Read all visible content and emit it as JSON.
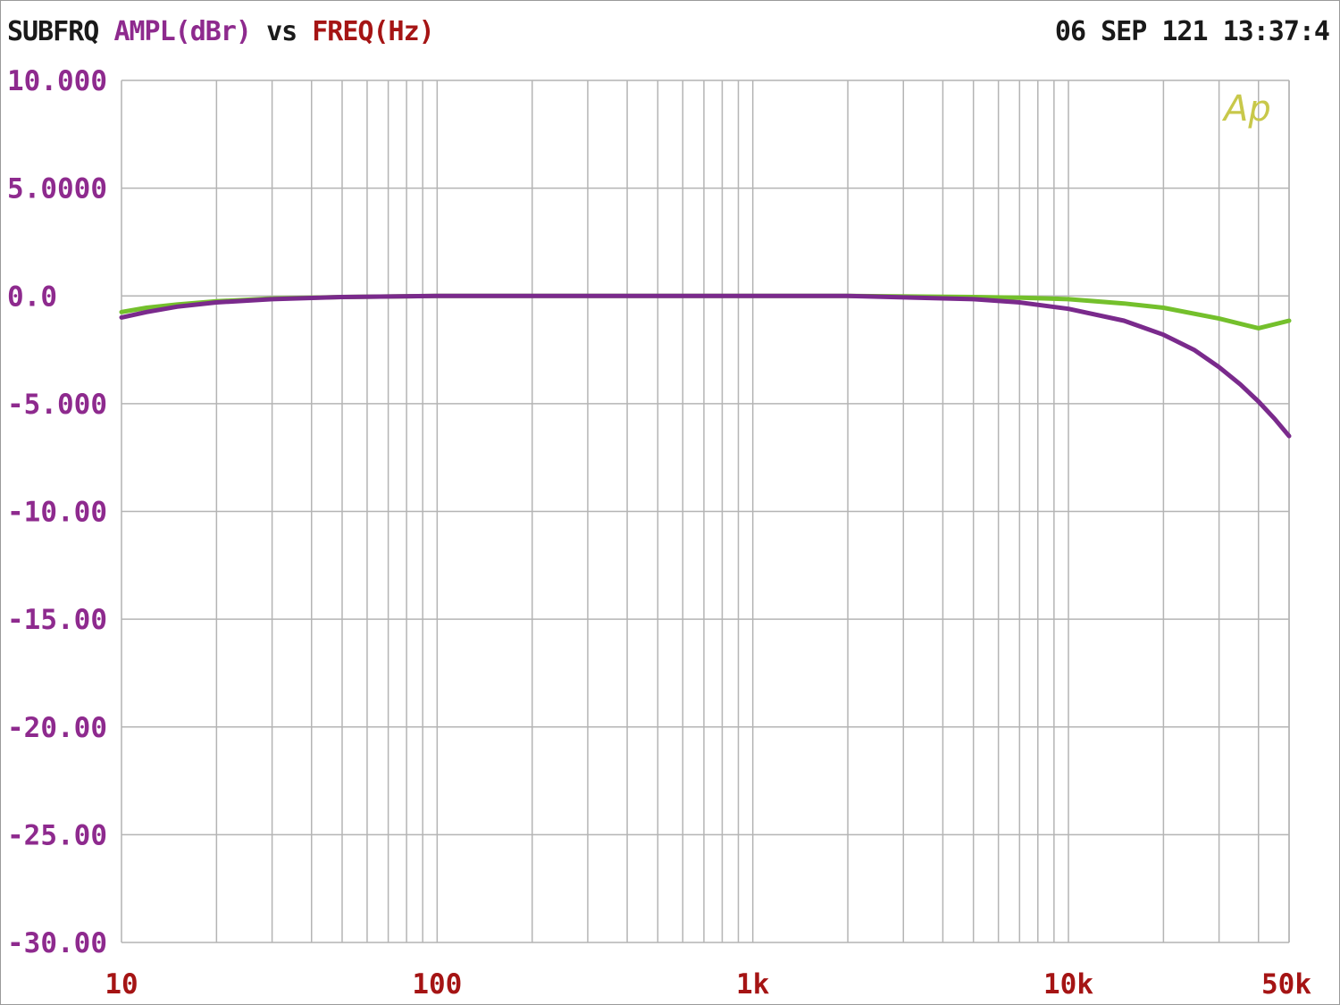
{
  "header": {
    "measurement": "SUBFRQ",
    "y_quantity": "AMPL(dBr)",
    "vs": "vs",
    "x_quantity": "FREQ(Hz)",
    "timestamp": "06 SEP 121 13:37:4"
  },
  "logo": "Ap",
  "colors": {
    "label_dark": "#1a1a1a",
    "y_axis_text": "#8e2a8e",
    "x_axis_text": "#a51414",
    "grid": "#b4b4b4",
    "series_purple": "#7a2a8c",
    "series_green": "#74c02c",
    "logo": "#c8c84a"
  },
  "chart_data": {
    "type": "line",
    "title": "SUBFRQ AMPL(dBr) vs FREQ(Hz)",
    "xlabel": "FREQ(Hz)",
    "ylabel": "AMPL(dBr)",
    "xscale": "log",
    "xlim": [
      10,
      50000
    ],
    "ylim": [
      -30,
      10
    ],
    "grid": true,
    "y_ticks": [
      {
        "value": 10,
        "label": "10.000"
      },
      {
        "value": 5,
        "label": "5.0000"
      },
      {
        "value": 0,
        "label": "0.0"
      },
      {
        "value": -5,
        "label": "-5.000"
      },
      {
        "value": -10,
        "label": "-10.00"
      },
      {
        "value": -15,
        "label": "-15.00"
      },
      {
        "value": -20,
        "label": "-20.00"
      },
      {
        "value": -25,
        "label": "-25.00"
      },
      {
        "value": -30,
        "label": "-30.00"
      }
    ],
    "x_ticks": [
      {
        "value": 10,
        "label": "10"
      },
      {
        "value": 100,
        "label": "100"
      },
      {
        "value": 1000,
        "label": "1k"
      },
      {
        "value": 10000,
        "label": "10k"
      },
      {
        "value": 50000,
        "label": "50k"
      }
    ],
    "series": [
      {
        "color": "#74c02c",
        "x": [
          10,
          12,
          15,
          20,
          30,
          50,
          100,
          200,
          500,
          1000,
          2000,
          5000,
          7000,
          10000,
          15000,
          20000,
          30000,
          40000,
          50000
        ],
        "y": [
          -0.75,
          -0.55,
          -0.4,
          -0.25,
          -0.12,
          -0.05,
          0,
          0,
          0,
          0,
          0,
          -0.05,
          -0.08,
          -0.15,
          -0.35,
          -0.55,
          -1.05,
          -1.5,
          -1.15
        ]
      },
      {
        "color": "#7a2a8c",
        "x": [
          10,
          12,
          15,
          20,
          30,
          50,
          100,
          200,
          500,
          1000,
          2000,
          5000,
          7000,
          10000,
          15000,
          20000,
          25000,
          30000,
          35000,
          40000,
          45000,
          50000
        ],
        "y": [
          -1.0,
          -0.75,
          -0.5,
          -0.3,
          -0.15,
          -0.05,
          0,
          0,
          0,
          0,
          0,
          -0.15,
          -0.3,
          -0.6,
          -1.15,
          -1.8,
          -2.5,
          -3.3,
          -4.1,
          -4.9,
          -5.7,
          -6.5
        ]
      }
    ]
  }
}
